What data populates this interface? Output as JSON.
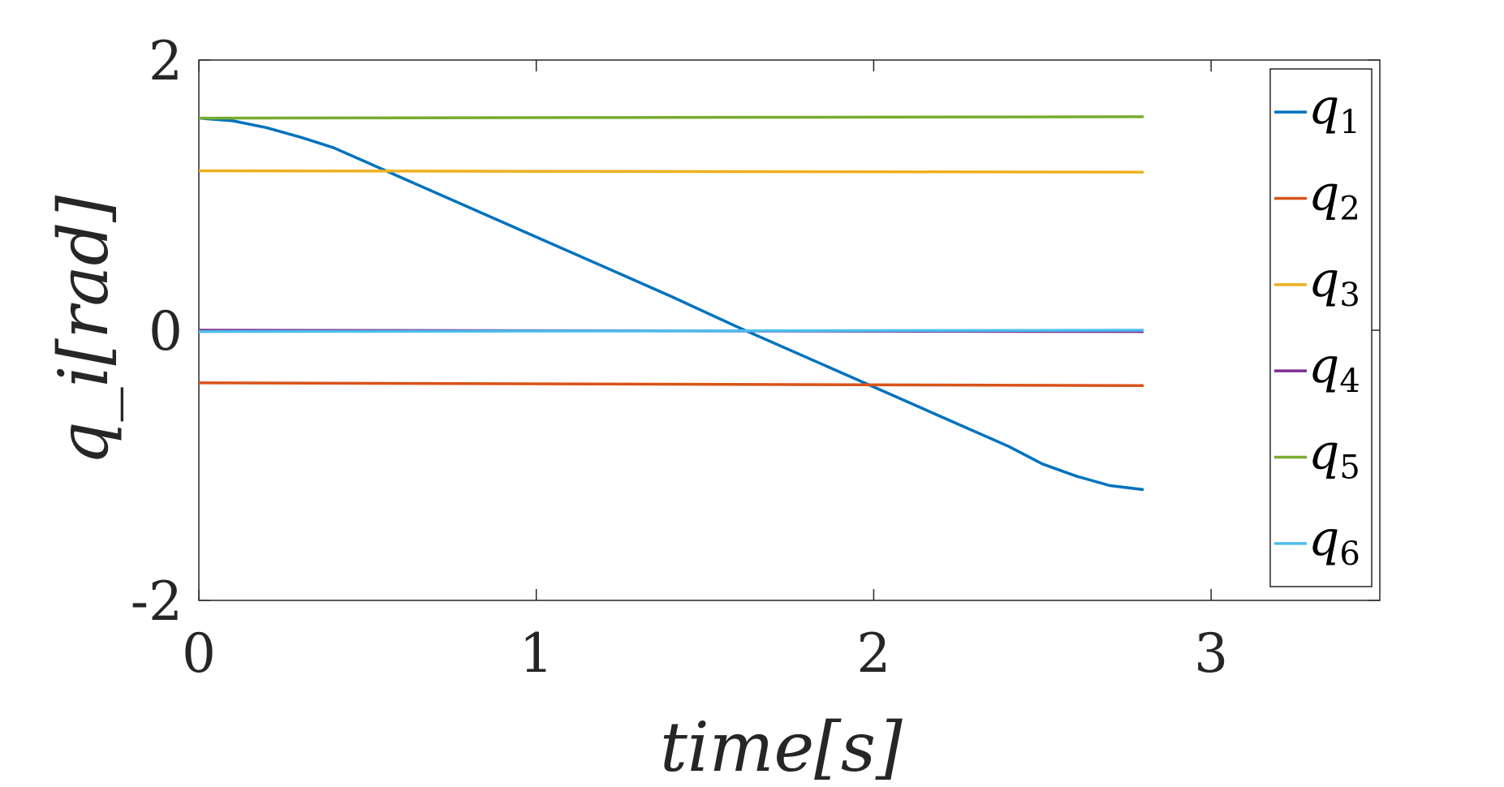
{
  "chart_data": {
    "type": "line",
    "xlabel": "time[s]",
    "ylabel": "q_i[rad]",
    "xlim": [
      0,
      3.5
    ],
    "ylim": [
      -2,
      2
    ],
    "xticks": [
      0,
      1,
      2,
      3
    ],
    "xtick_labels": [
      "0",
      "1",
      "2",
      "3"
    ],
    "yticks": [
      -2,
      0,
      2
    ],
    "ytick_labels": [
      "-2",
      "0",
      "2"
    ],
    "grid": false,
    "legend_position": "right-outside",
    "series": [
      {
        "name": "q1",
        "base": "q",
        "sub": "1",
        "color": "#0072BD",
        "x": [
          0,
          0.1,
          0.2,
          0.3,
          0.4,
          0.5,
          0.6,
          0.8,
          1.0,
          1.2,
          1.4,
          1.6,
          1.8,
          2.0,
          2.2,
          2.4,
          2.5,
          2.6,
          2.7,
          2.8
        ],
        "y": [
          1.57,
          1.55,
          1.5,
          1.43,
          1.35,
          1.24,
          1.13,
          0.91,
          0.69,
          0.47,
          0.25,
          0.02,
          -0.2,
          -0.42,
          -0.64,
          -0.86,
          -0.99,
          -1.08,
          -1.15,
          -1.18
        ]
      },
      {
        "name": "q2",
        "base": "q",
        "sub": "2",
        "color": "#D95319",
        "x": [
          0,
          2.8
        ],
        "y": [
          -0.39,
          -0.41
        ]
      },
      {
        "name": "q3",
        "base": "q",
        "sub": "3",
        "color": "#EDB120",
        "x": [
          0,
          2.8
        ],
        "y": [
          1.18,
          1.17
        ]
      },
      {
        "name": "q4",
        "base": "q",
        "sub": "4",
        "color": "#7E2F8E",
        "x": [
          0,
          2.8
        ],
        "y": [
          0.0,
          -0.01
        ]
      },
      {
        "name": "q5",
        "base": "q",
        "sub": "5",
        "color": "#77AC30",
        "x": [
          0,
          2.8
        ],
        "y": [
          1.57,
          1.58
        ]
      },
      {
        "name": "q6",
        "base": "q",
        "sub": "6",
        "color": "#4DBEEE",
        "x": [
          0,
          2.8
        ],
        "y": [
          -0.01,
          0.0
        ]
      }
    ]
  }
}
